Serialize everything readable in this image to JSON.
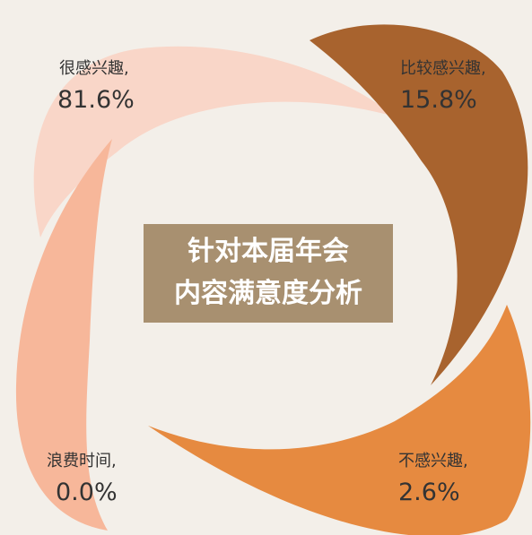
{
  "title": {
    "lines": [
      "针对本届年会",
      "内容满意度分析"
    ]
  },
  "items": [
    {
      "label": "很感兴趣,",
      "value": "81.6%"
    },
    {
      "label": "比较感兴趣,",
      "value": "15.8%"
    },
    {
      "label": "不感兴趣,",
      "value": "2.6%"
    },
    {
      "label": "浪费时间,",
      "value": "0.0%"
    }
  ]
}
